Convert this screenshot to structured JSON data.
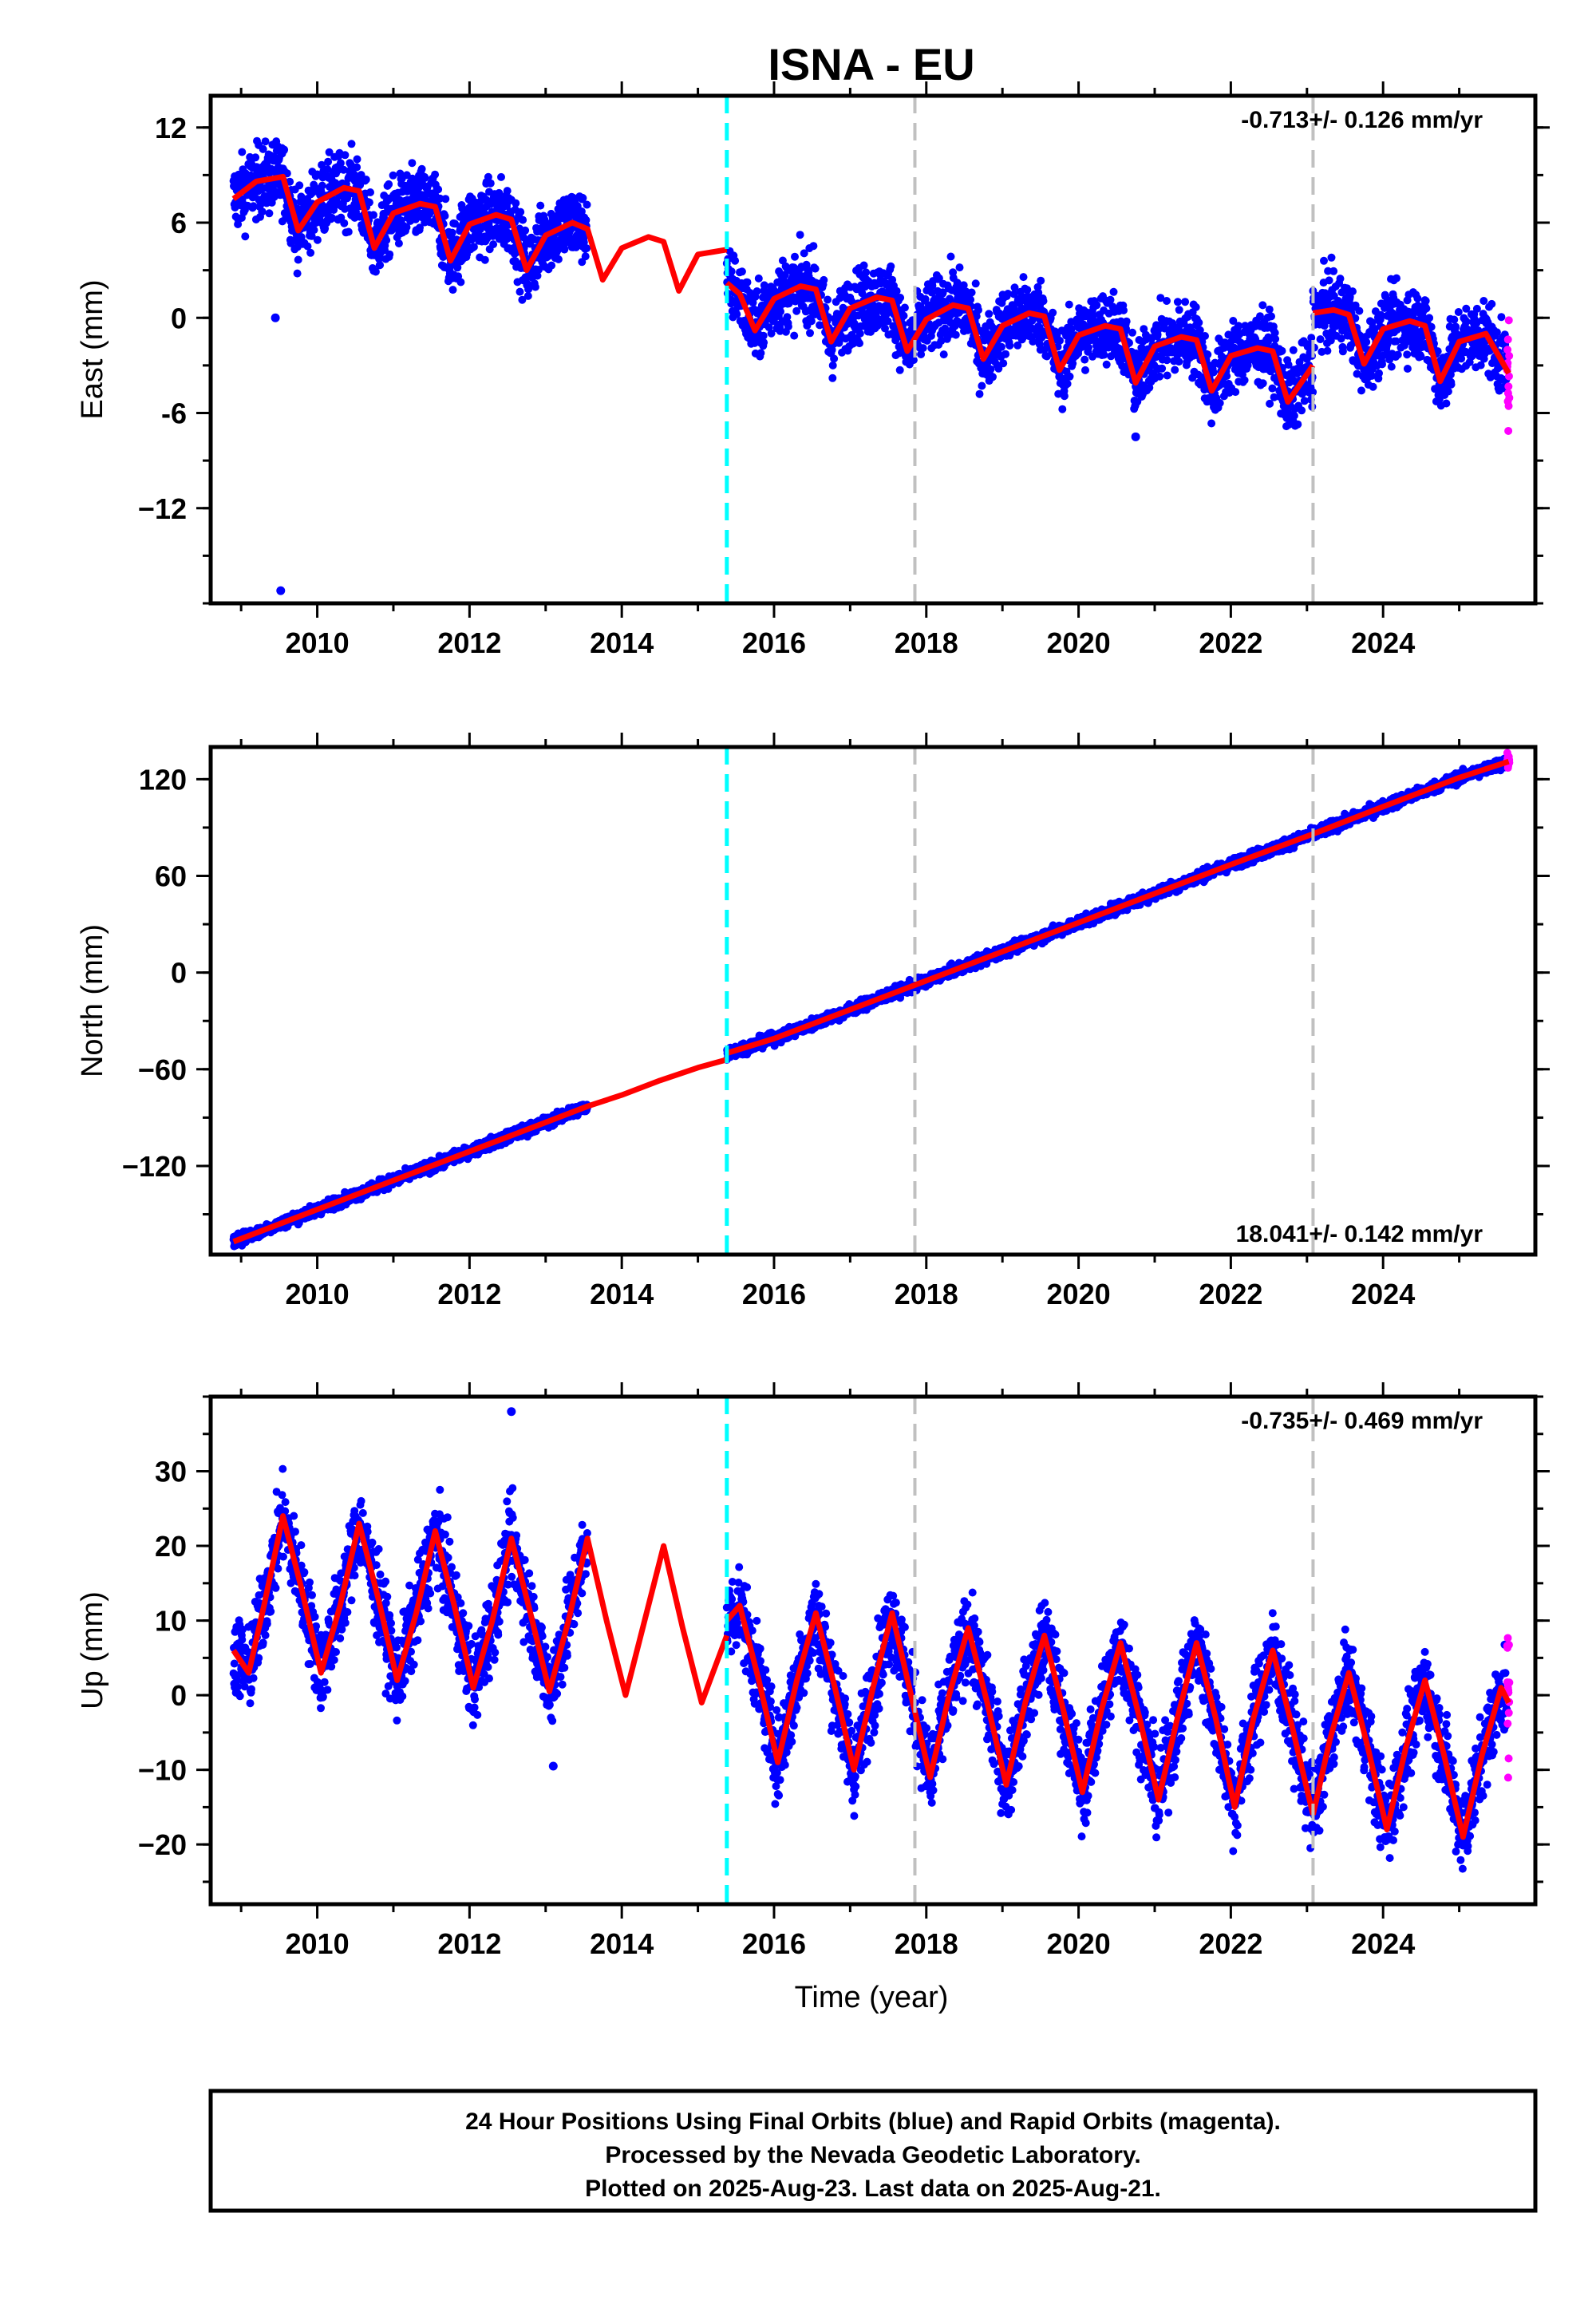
{
  "title": "ISNA - EU",
  "xlabel": "Time (year)",
  "colors": {
    "final_orbits": "#0000ff",
    "rapid_orbits": "#ff00ff",
    "model": "#ff0000",
    "antenna_change": "#00ffff",
    "other_offset": "#c0c0c0"
  },
  "footer": {
    "line1": "24 Hour Positions Using Final Orbits (blue) and Rapid Orbits (magenta).",
    "line2": "Processed by the Nevada Geodetic Laboratory.",
    "line3": "Plotted on 2025-Aug-23. Last data on 2025-Aug-21."
  },
  "chart_data": [
    {
      "type": "scatter",
      "component": "East",
      "ylabel": "East (mm)",
      "rate_label": "-0.713+/- 0.126 mm/yr",
      "rate_position": "top-right",
      "xlim": [
        2008.6,
        2026.0
      ],
      "ylim": [
        -18,
        14
      ],
      "xticks": [
        2010,
        2012,
        2014,
        2016,
        2018,
        2020,
        2022,
        2024
      ],
      "yticks": [
        12,
        6,
        0,
        -6,
        -12
      ],
      "ytick_labels": [
        "12",
        "6",
        "0",
        "-6",
        "−12"
      ],
      "vlines": [
        {
          "x": 2015.38,
          "color": "cyan"
        },
        {
          "x": 2017.85,
          "color": "gray"
        },
        {
          "x": 2023.08,
          "color": "gray"
        }
      ],
      "model_segments": [
        {
          "x": [
            2008.9,
            2009.2,
            2009.55,
            2009.75,
            2010.0,
            2010.35,
            2010.55,
            2010.75,
            2011.0,
            2011.35,
            2011.55,
            2011.75,
            2012.0,
            2012.35,
            2012.55,
            2012.75,
            2013.0,
            2013.35,
            2013.55,
            2013.75,
            2014.0,
            2014.35,
            2014.55,
            2014.75,
            2015.0,
            2015.38
          ],
          "y": [
            7.5,
            8.6,
            8.9,
            5.5,
            7.3,
            8.2,
            8.0,
            4.4,
            6.6,
            7.2,
            7.0,
            3.6,
            5.9,
            6.5,
            6.2,
            3.0,
            5.2,
            6.0,
            5.6,
            2.4,
            4.4,
            5.1,
            4.8,
            1.7,
            4.0,
            4.3
          ]
        },
        {
          "x": [
            2015.38,
            2015.55,
            2015.75,
            2016.0,
            2016.35,
            2016.55,
            2016.75,
            2017.0,
            2017.35,
            2017.55,
            2017.75,
            2018.0,
            2018.35,
            2018.55,
            2018.75,
            2019.0,
            2019.35,
            2019.55,
            2019.75,
            2020.0,
            2020.35,
            2020.55,
            2020.75,
            2021.0,
            2021.35,
            2021.55,
            2021.75,
            2022.0,
            2022.35,
            2022.55,
            2022.75,
            2023.08
          ],
          "y": [
            2.2,
            1.5,
            -0.8,
            1.2,
            2.0,
            1.8,
            -1.5,
            0.6,
            1.3,
            1.1,
            -2.1,
            -0.1,
            0.8,
            0.6,
            -2.6,
            -0.5,
            0.3,
            0.1,
            -3.3,
            -1.1,
            -0.5,
            -0.7,
            -4.1,
            -1.8,
            -1.2,
            -1.4,
            -4.6,
            -2.4,
            -1.9,
            -2.1,
            -5.3,
            -3.0
          ]
        },
        {
          "x": [
            2023.08,
            2023.35,
            2023.55,
            2023.75,
            2024.0,
            2024.35,
            2024.55,
            2024.75,
            2025.0,
            2025.35,
            2025.65
          ],
          "y": [
            0.3,
            0.5,
            0.2,
            -2.9,
            -0.7,
            -0.2,
            -0.5,
            -4.0,
            -1.5,
            -1.0,
            -3.5
          ]
        }
      ],
      "final_data_ranges": [
        [
          2008.9,
          2013.55
        ],
        [
          2015.38,
          2025.63
        ]
      ],
      "rapid_data_range": [
        2025.63,
        2025.66
      ],
      "outliers": [
        {
          "x": 2009.45,
          "y": 0.0
        },
        {
          "x": 2009.52,
          "y": -17.2
        },
        {
          "x": 2020.75,
          "y": -7.5
        }
      ],
      "scatter_spread": 1.6,
      "model_color": "red"
    },
    {
      "type": "scatter",
      "component": "North",
      "ylabel": "North (mm)",
      "rate_label": "18.041+/- 0.142 mm/yr",
      "rate_position": "bottom-right",
      "xlim": [
        2008.6,
        2026.0
      ],
      "ylim": [
        -175,
        140
      ],
      "xticks": [
        2010,
        2012,
        2014,
        2016,
        2018,
        2020,
        2022,
        2024
      ],
      "yticks": [
        120,
        60,
        0,
        -60,
        -120
      ],
      "ytick_labels": [
        "120",
        "60",
        "0",
        "−60",
        "−120"
      ],
      "vlines": [
        {
          "x": 2015.38,
          "color": "cyan"
        },
        {
          "x": 2017.85,
          "color": "gray"
        },
        {
          "x": 2023.08,
          "color": "gray"
        }
      ],
      "model_segments": [
        {
          "x": [
            2008.9,
            2010.0,
            2011.0,
            2012.0,
            2013.0,
            2013.55,
            2014.0,
            2014.5,
            2015.0,
            2015.38
          ],
          "y": [
            -167,
            -147,
            -129,
            -111,
            -93,
            -83,
            -76,
            -67,
            -59,
            -54
          ]
        },
        {
          "x": [
            2015.38,
            2016.0,
            2017.0,
            2018.0,
            2019.0,
            2020.0,
            2021.0,
            2022.0,
            2023.08
          ],
          "y": [
            -50,
            -41,
            -23,
            -5,
            13,
            31,
            49,
            67,
            86
          ]
        },
        {
          "x": [
            2023.08,
            2024.0,
            2025.0,
            2025.65
          ],
          "y": [
            86,
            103,
            121,
            131
          ]
        }
      ],
      "final_data_ranges": [
        [
          2008.9,
          2013.55
        ],
        [
          2015.38,
          2025.63
        ]
      ],
      "rapid_data_range": [
        2025.63,
        2025.66
      ],
      "outliers": [],
      "scatter_spread": 2.5,
      "model_color": "red"
    },
    {
      "type": "scatter",
      "component": "Up",
      "ylabel": "Up (mm)",
      "rate_label": "-0.735+/- 0.469 mm/yr",
      "rate_position": "top-right",
      "xlim": [
        2008.6,
        2026.0
      ],
      "ylim": [
        -28,
        40
      ],
      "xticks": [
        2010,
        2012,
        2014,
        2016,
        2018,
        2020,
        2022,
        2024
      ],
      "yticks": [
        30,
        20,
        10,
        0,
        -10,
        -20
      ],
      "ytick_labels": [
        "30",
        "20",
        "10",
        "0",
        "−10",
        "−20"
      ],
      "vlines": [
        {
          "x": 2015.38,
          "color": "cyan"
        },
        {
          "x": 2017.85,
          "color": "gray"
        },
        {
          "x": 2023.08,
          "color": "gray"
        }
      ],
      "model_segments": [
        {
          "x": [
            2008.9,
            2009.1,
            2009.3,
            2009.55,
            2009.8,
            2010.05,
            2010.3,
            2010.55,
            2010.8,
            2011.05,
            2011.3,
            2011.55,
            2011.8,
            2012.05,
            2012.3,
            2012.55,
            2012.8,
            2013.05,
            2013.3,
            2013.55,
            2013.8,
            2014.05,
            2014.3,
            2014.55,
            2014.8,
            2015.05,
            2015.38
          ],
          "y": [
            6,
            3,
            12,
            24,
            14,
            3,
            12,
            23,
            13,
            2,
            11,
            22,
            12,
            1,
            10,
            21,
            11,
            0.5,
            10,
            21,
            10,
            0,
            10,
            20,
            9,
            -1,
            8
          ]
        },
        {
          "x": [
            2015.38,
            2015.55,
            2015.8,
            2016.05,
            2016.3,
            2016.55,
            2016.8,
            2017.05,
            2017.3,
            2017.55,
            2017.8,
            2018.05,
            2018.3,
            2018.55,
            2018.8,
            2019.05,
            2019.3,
            2019.55,
            2019.8,
            2020.05,
            2020.3,
            2020.55,
            2020.8,
            2021.05,
            2021.3,
            2021.55,
            2021.8,
            2022.05,
            2022.3,
            2022.55,
            2022.8,
            2023.08
          ],
          "y": [
            10,
            12,
            2,
            -9,
            2,
            11,
            1,
            -10,
            1,
            11,
            0,
            -11,
            0,
            9,
            -1,
            -12,
            -1,
            8,
            -2,
            -13,
            -2,
            7,
            -3,
            -14,
            -3,
            7,
            -3,
            -15,
            -3,
            6,
            -4,
            -16
          ]
        },
        {
          "x": [
            2023.08,
            2023.3,
            2023.55,
            2023.8,
            2024.05,
            2024.3,
            2024.55,
            2024.8,
            2025.05,
            2025.3,
            2025.55,
            2025.65
          ],
          "y": [
            -16,
            -6,
            3,
            -7,
            -18,
            -7,
            2,
            -8,
            -19,
            -8,
            1,
            -1
          ]
        }
      ],
      "final_data_ranges": [
        [
          2008.9,
          2013.55
        ],
        [
          2015.38,
          2025.63
        ]
      ],
      "rapid_data_range": [
        2025.63,
        2025.66
      ],
      "outliers": [
        {
          "x": 2012.55,
          "y": 38
        },
        {
          "x": 2013.1,
          "y": -9.5
        }
      ],
      "scatter_spread": 4.0,
      "model_color": "red"
    }
  ]
}
